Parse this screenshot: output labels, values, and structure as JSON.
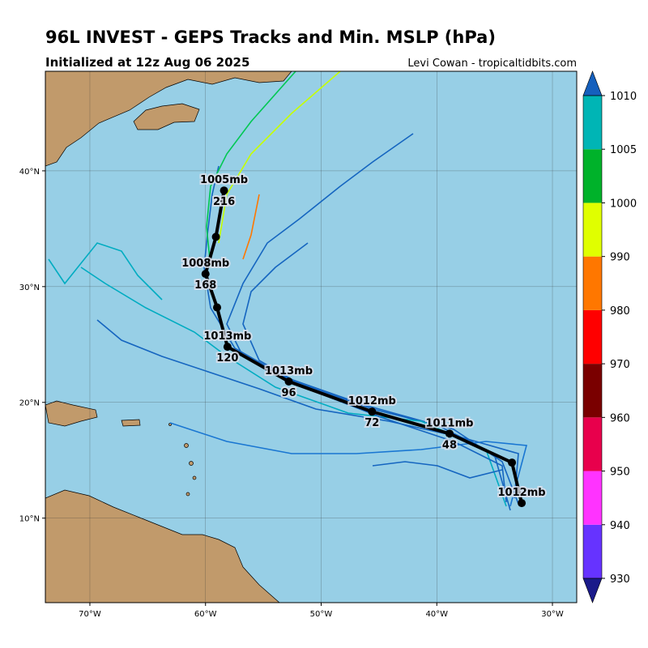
{
  "map": {
    "title": "96L INVEST - GEPS Tracks and Min. MSLP (hPa)",
    "subtitle": "Initialized at 12z Aug 06 2025",
    "credit": "Levi Cowan - tropicaltidbits.com",
    "xlim": [
      -73.85,
      -27.9
    ],
    "ylim": [
      2.7,
      48.6
    ],
    "xticks": [
      {
        "value": -70,
        "label": "70°W"
      },
      {
        "value": -60,
        "label": "60°W"
      },
      {
        "value": -50,
        "label": "50°W"
      },
      {
        "value": -40,
        "label": "40°W"
      },
      {
        "value": -30,
        "label": "30°W"
      }
    ],
    "yticks": [
      {
        "value": 10,
        "label": "10°N"
      },
      {
        "value": 20,
        "label": "20°N"
      },
      {
        "value": 30,
        "label": "30°N"
      },
      {
        "value": 40,
        "label": "40°N"
      }
    ],
    "colorbar": {
      "ticks": [
        930,
        940,
        950,
        960,
        970,
        980,
        990,
        1000,
        1005,
        1010
      ],
      "colors": [
        "#6633ff",
        "#ff33ff",
        "#e8004c",
        "#7a0000",
        "#ff0000",
        "#ff7700",
        "#e0ff00",
        "#00b22a",
        "#00b5b5"
      ],
      "under_color": "#1a1a8a",
      "over_color": "#1560bd"
    },
    "mean_track": [
      {
        "lon": -32.66,
        "lat": 11.3,
        "mslp_label": "1012mb"
      },
      {
        "lon": -33.5,
        "lat": 14.8
      },
      {
        "lon": -38.9,
        "lat": 17.3,
        "mslp_label": "1011mb",
        "hour_label": "48"
      },
      {
        "lon": -45.6,
        "lat": 19.2,
        "mslp_label": "1012mb",
        "hour_label": "72"
      },
      {
        "lon": -52.8,
        "lat": 21.8,
        "mslp_label": "1013mb",
        "hour_label": "96"
      },
      {
        "lon": -58.1,
        "lat": 24.8,
        "mslp_label": "1013mb",
        "hour_label": "120"
      },
      {
        "lon": -59.0,
        "lat": 28.2
      },
      {
        "lon": -60.0,
        "lat": 31.1,
        "mslp_label": "1008mb",
        "hour_label": "168"
      },
      {
        "lon": -59.1,
        "lat": 34.3
      },
      {
        "lon": -58.4,
        "lat": 38.3,
        "mslp_label": "1005mb",
        "hour_label": "216"
      }
    ]
  }
}
